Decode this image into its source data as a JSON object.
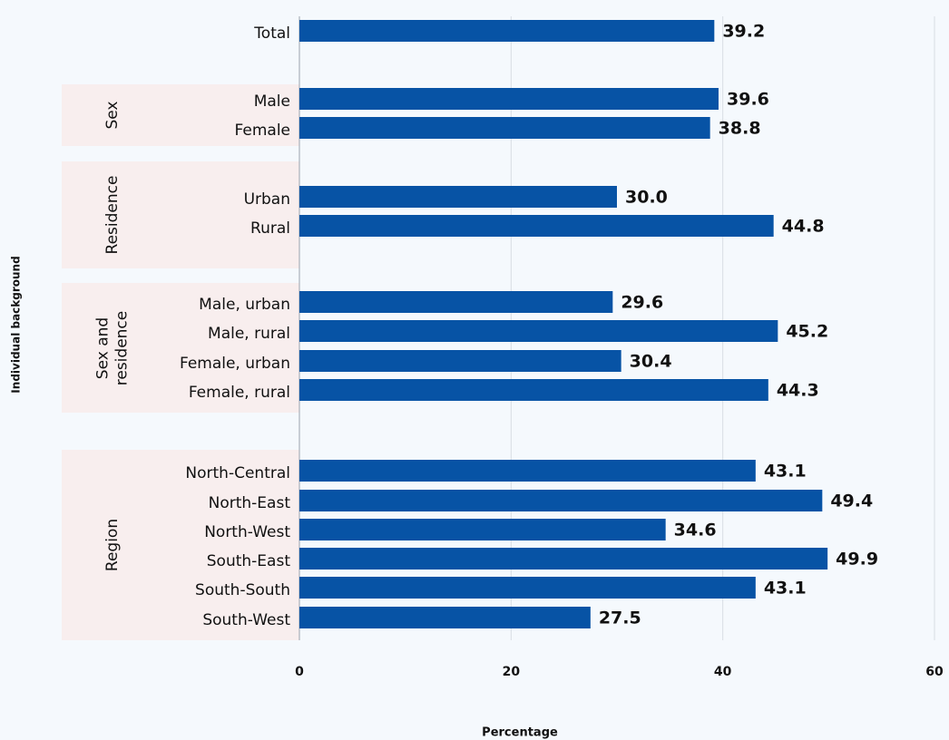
{
  "chart_data": {
    "type": "bar",
    "orientation": "horizontal",
    "categories": [
      "Total",
      "Male",
      "Female",
      "Urban",
      "Rural",
      "Male, urban",
      "Male, rural",
      "Female, urban",
      "Female, rural",
      "North-Central",
      "North-East",
      "North-West",
      "South-East",
      "South-South",
      "South-West"
    ],
    "groups": [
      null,
      "Sex",
      "Sex",
      "Residence",
      "Residence",
      "Sex and residence",
      "Sex and residence",
      "Sex and residence",
      "Sex and residence",
      "Region",
      "Region",
      "Region",
      "Region",
      "Region",
      "Region"
    ],
    "values": [
      39.2,
      39.6,
      38.8,
      30.0,
      44.8,
      29.6,
      45.2,
      30.4,
      44.3,
      43.1,
      49.4,
      34.6,
      49.9,
      43.1,
      27.5
    ],
    "value_labels": [
      "39.2",
      "39.6",
      "38.8",
      "30.0",
      "44.8",
      "29.6",
      "45.2",
      "30.4",
      "44.3",
      "43.1",
      "49.4",
      "34.6",
      "49.9",
      "43.1",
      "27.5"
    ],
    "color": "#0753a5",
    "xlim": [
      0,
      60
    ],
    "xticks": [
      0,
      20,
      40,
      60
    ],
    "grid": true,
    "xlabel": "Percentage",
    "ylabel": "Individual background"
  }
}
